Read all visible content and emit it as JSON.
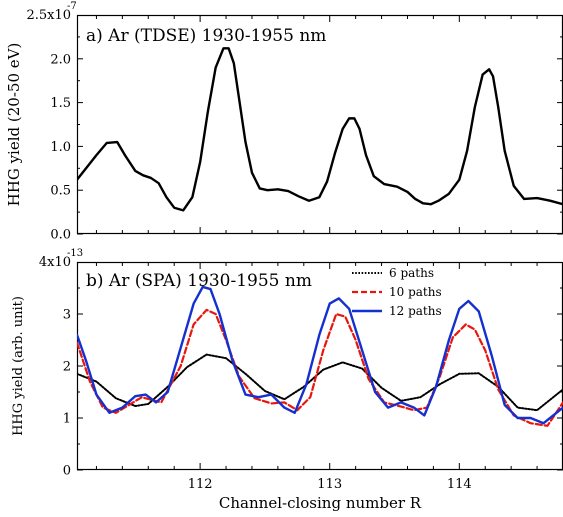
{
  "chart_data": [
    {
      "type": "line",
      "title": "a) Ar (TDSE) 1930-1955 nm",
      "xlabel": "",
      "ylabel": "HHG yield (20-50 eV)",
      "xlim": [
        111.05,
        114.8
      ],
      "ylim": [
        0,
        2.5
      ],
      "y_scale_label": "x10",
      "y_scale_exponent": "-7",
      "y_top_tick_prefix": "2.5",
      "yticks": [
        "0.0",
        "0.5",
        "1.0",
        "1.5",
        "2.0"
      ],
      "ytick_values": [
        0,
        0.5,
        1.0,
        1.5,
        2.0
      ],
      "series": [
        {
          "color": "#000000",
          "dash": "solid",
          "x": [
            111.05,
            111.12,
            111.2,
            111.28,
            111.36,
            111.42,
            111.5,
            111.56,
            111.62,
            111.68,
            111.74,
            111.8,
            111.87,
            111.94,
            112.0,
            112.06,
            112.12,
            112.18,
            112.22,
            112.26,
            112.3,
            112.35,
            112.4,
            112.46,
            112.52,
            112.6,
            112.68,
            112.76,
            112.84,
            112.92,
            112.98,
            113.04,
            113.1,
            113.15,
            113.19,
            113.23,
            113.28,
            113.34,
            113.42,
            113.52,
            113.6,
            113.66,
            113.72,
            113.78,
            113.84,
            113.92,
            114.0,
            114.06,
            114.12,
            114.18,
            114.23,
            114.26,
            114.3,
            114.35,
            114.42,
            114.5,
            114.6,
            114.7,
            114.8
          ],
          "y": [
            0.62,
            0.75,
            0.9,
            1.04,
            1.05,
            0.9,
            0.72,
            0.67,
            0.64,
            0.58,
            0.42,
            0.3,
            0.27,
            0.42,
            0.82,
            1.4,
            1.9,
            2.12,
            2.12,
            1.95,
            1.55,
            1.05,
            0.7,
            0.52,
            0.5,
            0.51,
            0.49,
            0.43,
            0.38,
            0.42,
            0.6,
            0.92,
            1.2,
            1.32,
            1.32,
            1.2,
            0.9,
            0.66,
            0.57,
            0.54,
            0.48,
            0.4,
            0.35,
            0.34,
            0.38,
            0.46,
            0.62,
            0.95,
            1.45,
            1.82,
            1.88,
            1.8,
            1.45,
            0.95,
            0.55,
            0.4,
            0.41,
            0.38,
            0.34
          ]
        }
      ]
    },
    {
      "type": "line",
      "title": "b) Ar (SPA) 1930-1955 nm",
      "xlabel": "Channel-closing number R",
      "ylabel": "HHG yield (arb. unit)",
      "xlim": [
        111.05,
        114.8
      ],
      "ylim": [
        0,
        4
      ],
      "y_scale_label": "x10",
      "y_scale_exponent": "-13",
      "y_top_tick_prefix": "4",
      "yticks": [
        "0",
        "1",
        "2",
        "3"
      ],
      "ytick_values": [
        0,
        1,
        2,
        3
      ],
      "xticks": [
        "112",
        "113",
        "114"
      ],
      "xtick_values": [
        112,
        113,
        114
      ],
      "legend_position": "top-right",
      "series": [
        {
          "name": "6 paths",
          "color": "#000000",
          "dash": "dotted",
          "x": [
            111.05,
            111.2,
            111.35,
            111.5,
            111.6,
            111.75,
            111.9,
            112.05,
            112.2,
            112.35,
            112.5,
            112.65,
            112.8,
            112.95,
            113.1,
            113.25,
            113.4,
            113.55,
            113.7,
            113.85,
            114.0,
            114.15,
            114.3,
            114.45,
            114.6,
            114.8
          ],
          "y": [
            1.85,
            1.7,
            1.38,
            1.23,
            1.27,
            1.6,
            1.98,
            2.22,
            2.15,
            1.85,
            1.52,
            1.36,
            1.6,
            1.93,
            2.07,
            1.95,
            1.58,
            1.33,
            1.4,
            1.65,
            1.85,
            1.86,
            1.6,
            1.2,
            1.15,
            1.55
          ]
        },
        {
          "name": "10 paths",
          "color": "#e8160c",
          "dash": "dashed",
          "x": [
            111.05,
            111.15,
            111.25,
            111.35,
            111.45,
            111.55,
            111.7,
            111.85,
            111.95,
            112.05,
            112.12,
            112.2,
            112.3,
            112.42,
            112.55,
            112.65,
            112.75,
            112.85,
            112.95,
            113.05,
            113.12,
            113.2,
            113.3,
            113.42,
            113.55,
            113.65,
            113.75,
            113.85,
            113.95,
            114.05,
            114.12,
            114.2,
            114.3,
            114.42,
            114.55,
            114.68,
            114.8
          ],
          "y": [
            2.45,
            1.7,
            1.2,
            1.1,
            1.25,
            1.4,
            1.3,
            2.0,
            2.8,
            3.08,
            3.0,
            2.5,
            1.8,
            1.38,
            1.28,
            1.3,
            1.15,
            1.4,
            2.3,
            3.0,
            2.95,
            2.5,
            1.75,
            1.3,
            1.22,
            1.15,
            1.2,
            1.8,
            2.55,
            2.8,
            2.7,
            2.3,
            1.55,
            1.05,
            0.9,
            0.85,
            1.3
          ]
        },
        {
          "name": "12 paths",
          "color": "#1530d0",
          "dash": "solid",
          "x": [
            111.05,
            111.12,
            111.2,
            111.3,
            111.4,
            111.5,
            111.58,
            111.66,
            111.75,
            111.85,
            111.95,
            112.02,
            112.08,
            112.15,
            112.25,
            112.35,
            112.45,
            112.55,
            112.65,
            112.73,
            112.82,
            112.92,
            113.0,
            113.07,
            113.15,
            113.25,
            113.35,
            113.45,
            113.55,
            113.65,
            113.73,
            113.82,
            113.92,
            114.0,
            114.07,
            114.15,
            114.25,
            114.35,
            114.45,
            114.55,
            114.65,
            114.8
          ],
          "y": [
            2.6,
            2.1,
            1.45,
            1.1,
            1.2,
            1.42,
            1.45,
            1.3,
            1.5,
            2.35,
            3.2,
            3.52,
            3.48,
            3.0,
            2.1,
            1.45,
            1.4,
            1.45,
            1.2,
            1.1,
            1.65,
            2.6,
            3.2,
            3.3,
            3.1,
            2.3,
            1.5,
            1.2,
            1.3,
            1.2,
            1.05,
            1.6,
            2.5,
            3.1,
            3.25,
            3.05,
            2.2,
            1.25,
            1.0,
            1.0,
            0.9,
            1.2
          ]
        }
      ]
    }
  ]
}
